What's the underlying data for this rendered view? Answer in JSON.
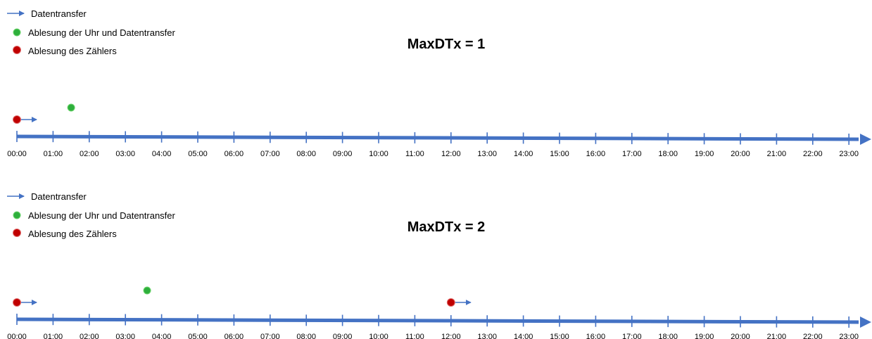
{
  "colors": {
    "axis": "#4472C4",
    "arrow": "#4472C4",
    "green_fill": "#2EAF3C",
    "green_stroke": "#6BD36B",
    "red_fill": "#C00000",
    "red_stroke": "#E07070",
    "text": "#000000"
  },
  "legend": {
    "transfer_label": "Datentransfer",
    "clock_label": "Ablesung der Uhr und Datentransfer",
    "meter_label": "Ablesung des Zählers",
    "transfer_icon": "right-arrow-icon",
    "clock_icon": "green-dot-icon",
    "meter_icon": "red-dot-icon"
  },
  "tick_labels": [
    "00:00",
    "01:00",
    "02:00",
    "03:00",
    "04:00",
    "05:00",
    "06:00",
    "07:00",
    "08:00",
    "09:00",
    "10:00",
    "11:00",
    "12:00",
    "13:00",
    "14:00",
    "15:00",
    "16:00",
    "17:00",
    "18:00",
    "19:00",
    "20:00",
    "21:00",
    "22:00",
    "23:00"
  ],
  "panels": [
    {
      "title": "MaxDTx = 1",
      "meter_readings_hours": [
        0
      ],
      "transfers_hours": [
        0
      ],
      "clock_readings_hours": [
        1.5
      ]
    },
    {
      "title": "MaxDTx = 2",
      "meter_readings_hours": [
        0,
        12
      ],
      "transfers_hours": [
        0,
        12
      ],
      "clock_readings_hours": [
        3.6
      ]
    }
  ]
}
